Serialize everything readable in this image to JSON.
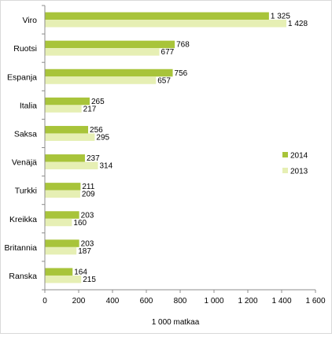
{
  "chart_data": {
    "type": "bar",
    "orientation": "horizontal",
    "categories": [
      "Viro",
      "Ruotsi",
      "Espanja",
      "Italia",
      "Saksa",
      "Venäjä",
      "Turkki",
      "Kreikka",
      "Britannia",
      "Ranska"
    ],
    "series": [
      {
        "name": "2014",
        "color": "#a8c43a",
        "values": [
          1325,
          768,
          756,
          265,
          256,
          237,
          211,
          203,
          203,
          164
        ]
      },
      {
        "name": "2013",
        "color": "#e6efb4",
        "values": [
          1428,
          677,
          657,
          217,
          295,
          314,
          209,
          160,
          187,
          215
        ]
      }
    ],
    "value_labels": [
      [
        "1 325",
        "768",
        "756",
        "265",
        "256",
        "237",
        "211",
        "203",
        "203",
        "164"
      ],
      [
        "1 428",
        "677",
        "657",
        "217",
        "295",
        "314",
        "209",
        "160",
        "187",
        "215"
      ]
    ],
    "xlim": [
      0,
      1600
    ],
    "xticks": [
      0,
      200,
      400,
      600,
      800,
      1000,
      1200,
      1400,
      1600
    ],
    "xtick_labels": [
      "0",
      "200",
      "400",
      "600",
      "800",
      "1 000",
      "1 200",
      "1 400",
      "1 600"
    ],
    "xlabel": "1 000  matkaa",
    "grid": false,
    "legend_position": "right"
  }
}
